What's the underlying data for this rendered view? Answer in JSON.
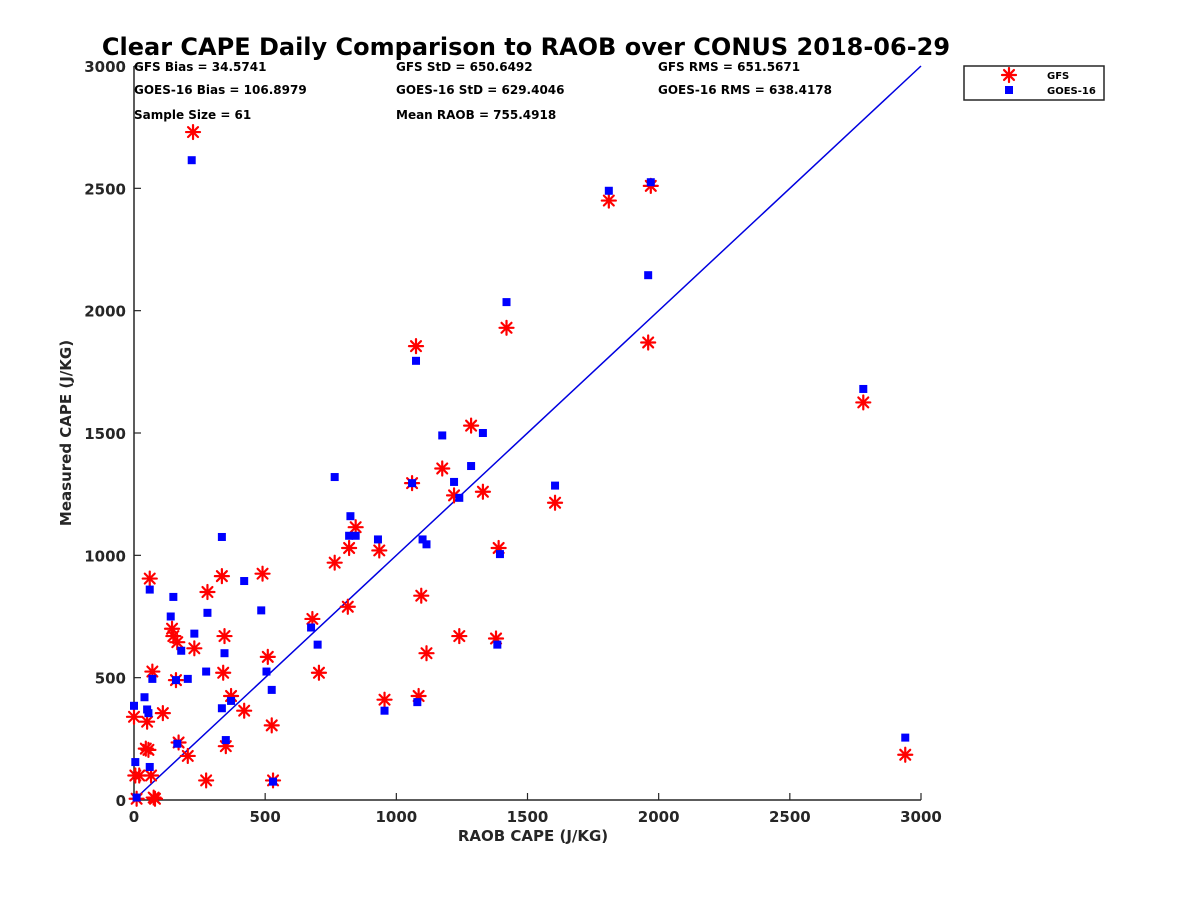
{
  "chart_data": {
    "type": "scatter",
    "title": "Clear CAPE Daily Comparison to RAOB over CONUS 2018-06-29",
    "xlabel": "RAOB CAPE (J/KG)",
    "ylabel": "Measured CAPE (J/KG)",
    "xlim": [
      0,
      3000
    ],
    "ylim": [
      0,
      3000
    ],
    "xticks": [
      0,
      500,
      1000,
      1500,
      2000,
      2500,
      3000
    ],
    "yticks": [
      0,
      500,
      1000,
      1500,
      2000,
      2500,
      3000
    ],
    "xtick_labels": [
      "0",
      "500",
      "1000",
      "1500",
      "2000",
      "2500",
      "3000"
    ],
    "ytick_labels": [
      "0",
      "500",
      "1000",
      "1500",
      "2000",
      "2500",
      "3000"
    ],
    "grid": false,
    "legend_position": "top-right, outside plot",
    "reference_line": {
      "from": [
        0,
        0
      ],
      "to": [
        3000,
        3000
      ],
      "color": "#0000e0"
    },
    "stats": [
      "GFS Bias = 34.5741",
      "GFS StD = 650.6492",
      "GFS RMS = 651.5671",
      "GOES-16 Bias = 106.8979",
      "GOES-16 StD = 629.4046",
      "GOES-16 RMS = 638.4178",
      "Sample Size = 61",
      "Mean RAOB = 755.4918"
    ],
    "series": [
      {
        "name": "GFS",
        "marker": "asterisk",
        "color": "#ff0000",
        "points": [
          [
            0,
            340
          ],
          [
            5,
            100
          ],
          [
            10,
            5
          ],
          [
            20,
            100
          ],
          [
            45,
            210
          ],
          [
            50,
            320
          ],
          [
            55,
            205
          ],
          [
            60,
            905
          ],
          [
            65,
            100
          ],
          [
            70,
            525
          ],
          [
            75,
            10
          ],
          [
            80,
            5
          ],
          [
            110,
            355
          ],
          [
            145,
            700
          ],
          [
            150,
            670
          ],
          [
            160,
            490
          ],
          [
            165,
            645
          ],
          [
            170,
            235
          ],
          [
            205,
            180
          ],
          [
            225,
            2730
          ],
          [
            230,
            620
          ],
          [
            275,
            80
          ],
          [
            280,
            850
          ],
          [
            335,
            915
          ],
          [
            340,
            520
          ],
          [
            345,
            670
          ],
          [
            350,
            220
          ],
          [
            370,
            425
          ],
          [
            420,
            365
          ],
          [
            490,
            925
          ],
          [
            510,
            585
          ],
          [
            525,
            305
          ],
          [
            530,
            80
          ],
          [
            680,
            740
          ],
          [
            705,
            520
          ],
          [
            765,
            970
          ],
          [
            815,
            790
          ],
          [
            820,
            1030
          ],
          [
            845,
            1115
          ],
          [
            935,
            1020
          ],
          [
            955,
            410
          ],
          [
            1060,
            1295
          ],
          [
            1075,
            1855
          ],
          [
            1085,
            425
          ],
          [
            1095,
            835
          ],
          [
            1115,
            600
          ],
          [
            1175,
            1355
          ],
          [
            1220,
            1245
          ],
          [
            1240,
            670
          ],
          [
            1285,
            1530
          ],
          [
            1330,
            1260
          ],
          [
            1380,
            660
          ],
          [
            1390,
            1030
          ],
          [
            1420,
            1930
          ],
          [
            1605,
            1215
          ],
          [
            1810,
            2450
          ],
          [
            1960,
            1870
          ],
          [
            1970,
            2510
          ],
          [
            2780,
            1625
          ],
          [
            2940,
            185
          ]
        ]
      },
      {
        "name": "GOES-16",
        "marker": "square",
        "color": "#0000ff",
        "points": [
          [
            0,
            385
          ],
          [
            5,
            155
          ],
          [
            10,
            10
          ],
          [
            40,
            420
          ],
          [
            50,
            370
          ],
          [
            55,
            355
          ],
          [
            60,
            860
          ],
          [
            60,
            135
          ],
          [
            70,
            495
          ],
          [
            140,
            750
          ],
          [
            150,
            830
          ],
          [
            160,
            490
          ],
          [
            165,
            230
          ],
          [
            180,
            610
          ],
          [
            205,
            495
          ],
          [
            220,
            2615
          ],
          [
            230,
            680
          ],
          [
            275,
            525
          ],
          [
            280,
            765
          ],
          [
            335,
            1075
          ],
          [
            335,
            375
          ],
          [
            345,
            600
          ],
          [
            350,
            245
          ],
          [
            370,
            405
          ],
          [
            420,
            895
          ],
          [
            485,
            775
          ],
          [
            505,
            525
          ],
          [
            525,
            450
          ],
          [
            530,
            75
          ],
          [
            675,
            705
          ],
          [
            700,
            635
          ],
          [
            765,
            1320
          ],
          [
            820,
            1080
          ],
          [
            825,
            1160
          ],
          [
            845,
            1080
          ],
          [
            930,
            1065
          ],
          [
            955,
            365
          ],
          [
            1060,
            1295
          ],
          [
            1075,
            1795
          ],
          [
            1080,
            400
          ],
          [
            1100,
            1065
          ],
          [
            1115,
            1045
          ],
          [
            1175,
            1490
          ],
          [
            1220,
            1300
          ],
          [
            1240,
            1235
          ],
          [
            1285,
            1365
          ],
          [
            1330,
            1500
          ],
          [
            1385,
            635
          ],
          [
            1395,
            1005
          ],
          [
            1420,
            2035
          ],
          [
            1605,
            1285
          ],
          [
            1810,
            2490
          ],
          [
            1960,
            2145
          ],
          [
            1970,
            2525
          ],
          [
            2780,
            1680
          ],
          [
            2940,
            255
          ]
        ]
      }
    ]
  },
  "legend": {
    "gfs_label": "GFS",
    "goes_label": "GOES-16"
  }
}
